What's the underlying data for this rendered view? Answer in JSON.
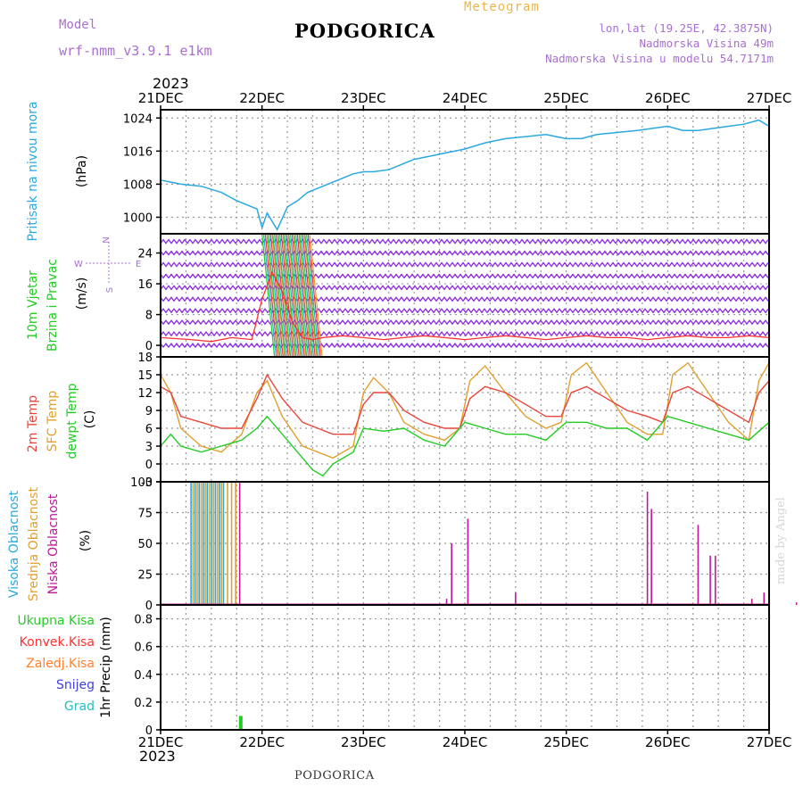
{
  "header": {
    "model_label": "Model",
    "model_name": "wrf-nmm_v3.9.1 e1km",
    "city": "PODGORICA",
    "title": "Meteogram",
    "location": "lon,lat (19.25E, 42.3875N)",
    "elevation": "Nadmorska Visina 49m",
    "model_elevation": "Nadmorska Visina u modelu 54.7171m",
    "year_top": "2023",
    "year_bottom": "2023"
  },
  "footer": {
    "city": "PODGORICA",
    "credit": "made by Angel"
  },
  "colors": {
    "pressure": "#2aa8e0",
    "wind": "#8a2be2",
    "wind_speed": "#ff3030",
    "temp2m": "#e8463c",
    "sfc": "#e0a030",
    "dewpt": "#22cc22",
    "cloud_high": "#2aa8e0",
    "cloud_mid": "#e0a030",
    "cloud_low": "#c0189a",
    "grid": "#999999"
  },
  "x_axis": {
    "ticks": [
      "21DEC",
      "22DEC",
      "23DEC",
      "24DEC",
      "25DEC",
      "26DEC",
      "27DEC"
    ]
  },
  "wind_legend": {
    "n": "N",
    "s": "S",
    "w": "W",
    "e": "E"
  },
  "chart_data": [
    {
      "type": "line",
      "id": "pressure",
      "ylabels": [
        "Pritisak na nivou mora",
        "(hPa)"
      ],
      "yticks": [
        "1000",
        "1008",
        "1016",
        "1024"
      ],
      "ylim": [
        996,
        1026
      ],
      "x_unit": "days from 21DEC 00UTC",
      "series": [
        {
          "x": [
            0,
            0.1,
            0.2,
            0.4,
            0.6,
            0.75,
            0.85,
            0.95,
            1.0,
            1.05,
            1.15,
            1.25,
            1.35,
            1.45,
            1.5,
            1.6,
            1.75,
            1.9,
            2.0,
            2.1,
            2.25,
            2.4,
            2.5,
            2.7,
            2.9,
            3.0,
            3.2,
            3.4,
            3.6,
            3.8,
            3.9,
            4.0,
            4.15,
            4.3,
            4.5,
            4.7,
            4.85,
            5.0,
            5.15,
            5.3,
            5.45,
            5.6,
            5.75,
            5.9,
            6.0
          ],
          "y": [
            1009,
            1008.5,
            1008,
            1007.5,
            1006,
            1004,
            1003,
            1002,
            997.5,
            1001,
            997,
            1002.5,
            1004,
            1006,
            1006.5,
            1007.5,
            1009,
            1010.5,
            1011,
            1011,
            1011.5,
            1013,
            1014,
            1015,
            1016,
            1016.5,
            1018,
            1019,
            1019.5,
            1020,
            1019.5,
            1019,
            1019,
            1020,
            1020.5,
            1021,
            1021.5,
            1022,
            1021,
            1021,
            1021.5,
            1022,
            1022.5,
            1023.5,
            1022
          ]
        }
      ]
    },
    {
      "type": "line",
      "id": "wind",
      "ylabels": [
        "10m Vjetar",
        "Brzina i Pravac",
        "(m/s)"
      ],
      "yticks": [
        "0",
        "8",
        "16",
        "24"
      ],
      "ylim": [
        -3,
        29
      ],
      "series": [
        {
          "name": "Brzina",
          "x": [
            0,
            0.3,
            0.5,
            0.7,
            0.9,
            1.0,
            1.1,
            1.2,
            1.3,
            1.4,
            1.5,
            1.6,
            1.8,
            2.0,
            2.2,
            2.4,
            2.6,
            2.8,
            3.0,
            3.2,
            3.4,
            3.6,
            3.8,
            4.0,
            4.2,
            4.4,
            4.6,
            4.8,
            5.0,
            5.2,
            5.4,
            5.6,
            5.8,
            6.0
          ],
          "y": [
            2,
            1.5,
            1,
            2,
            1.5,
            12,
            19,
            14,
            6,
            2,
            1.5,
            2,
            2.5,
            2,
            1.5,
            2,
            2.5,
            2,
            1.5,
            2,
            2.5,
            2,
            1.5,
            2,
            2.5,
            2,
            2,
            1.5,
            2,
            2.5,
            2,
            2,
            2.5,
            2
          ]
        }
      ]
    },
    {
      "type": "line",
      "id": "temperature",
      "ylabels": [
        "2m Temp",
        "SFC Temp",
        "dewpt Temp",
        "(C)"
      ],
      "yticks": [
        "-3",
        "0",
        "3",
        "6",
        "9",
        "12",
        "15",
        "18"
      ],
      "ylim": [
        -3,
        18
      ],
      "series": [
        {
          "name": "2m Temp",
          "key": "temp2m",
          "x": [
            0,
            0.1,
            0.2,
            0.4,
            0.6,
            0.8,
            0.95,
            1.05,
            1.2,
            1.4,
            1.55,
            1.7,
            1.9,
            2.0,
            2.1,
            2.25,
            2.4,
            2.6,
            2.8,
            2.95,
            3.05,
            3.2,
            3.4,
            3.6,
            3.8,
            3.95,
            4.05,
            4.2,
            4.4,
            4.6,
            4.8,
            4.95,
            5.05,
            5.2,
            5.4,
            5.6,
            5.8,
            5.9,
            6.0
          ],
          "y": [
            13,
            12,
            8,
            7,
            6,
            6,
            11,
            15,
            11,
            7,
            6,
            5,
            5,
            10,
            12,
            12,
            9,
            7,
            6,
            6,
            11,
            13,
            12,
            10,
            8,
            8,
            12,
            13,
            11,
            9,
            8,
            7,
            12,
            13,
            11,
            9,
            7,
            12,
            14
          ]
        },
        {
          "name": "SFC Temp",
          "key": "sfc",
          "x": [
            0,
            0.1,
            0.2,
            0.4,
            0.6,
            0.8,
            0.95,
            1.05,
            1.2,
            1.4,
            1.55,
            1.7,
            1.9,
            2.0,
            2.1,
            2.25,
            2.4,
            2.6,
            2.8,
            2.95,
            3.05,
            3.2,
            3.4,
            3.6,
            3.8,
            3.95,
            4.05,
            4.2,
            4.4,
            4.6,
            4.8,
            4.95,
            5.05,
            5.2,
            5.4,
            5.6,
            5.8,
            5.9,
            6.0
          ],
          "y": [
            15,
            12,
            6,
            3,
            2,
            5,
            12,
            14,
            8,
            3,
            2,
            1,
            3,
            12,
            14.5,
            12,
            7,
            5,
            4,
            6,
            14,
            16.5,
            12,
            8,
            6,
            7,
            15,
            17,
            12,
            7,
            5,
            5,
            15,
            17,
            12,
            7,
            4,
            14,
            17
          ]
        },
        {
          "name": "dewpt Temp",
          "key": "dewpt",
          "x": [
            0,
            0.1,
            0.2,
            0.4,
            0.6,
            0.8,
            0.95,
            1.05,
            1.2,
            1.4,
            1.5,
            1.6,
            1.7,
            1.9,
            2.0,
            2.2,
            2.4,
            2.6,
            2.8,
            3.0,
            3.2,
            3.4,
            3.6,
            3.8,
            4.0,
            4.2,
            4.4,
            4.6,
            4.8,
            5.0,
            5.2,
            5.4,
            5.6,
            5.8,
            6.0
          ],
          "y": [
            3,
            5,
            3,
            2,
            3,
            4,
            6,
            8,
            5,
            1,
            -1,
            -2,
            0,
            2,
            6,
            5.5,
            6,
            4,
            3,
            7,
            6,
            5,
            5,
            4,
            7,
            7,
            6,
            6,
            4,
            8,
            7,
            6,
            5,
            4,
            7
          ]
        }
      ]
    },
    {
      "type": "bar",
      "id": "clouds",
      "ylabels": [
        "Visoka Oblacnost",
        "Srednja Oblacnost",
        "Niska Oblacnost",
        "(%)"
      ],
      "yticks": [
        "0",
        "25",
        "50",
        "75",
        "100"
      ],
      "ylim": [
        0,
        100
      ],
      "series": [
        {
          "name": "Visoka Oblacnost",
          "key": "cloud_high",
          "x": [
            0.3,
            0.34,
            0.38,
            0.42,
            0.46,
            0.5,
            0.54,
            0.58,
            0.62
          ],
          "y": [
            100,
            100,
            100,
            100,
            100,
            100,
            100,
            100,
            100
          ]
        },
        {
          "name": "Srednja Oblacnost",
          "key": "cloud_mid",
          "x": [
            0.32,
            0.36,
            0.4,
            0.44,
            0.48,
            0.52,
            0.56,
            0.6,
            0.66,
            0.7,
            0.74
          ],
          "y": [
            100,
            100,
            100,
            100,
            100,
            100,
            100,
            100,
            100,
            100,
            100
          ]
        },
        {
          "name": "Niska Oblacnost",
          "key": "cloud_low",
          "x": [
            0.78,
            2.82,
            2.87,
            3.03,
            3.5,
            4.8,
            4.84,
            5.3,
            5.42,
            5.47,
            5.83,
            5.95,
            6.27
          ],
          "y": [
            100,
            5,
            50,
            70,
            10,
            92,
            78,
            65,
            40,
            40,
            5,
            10,
            2
          ]
        }
      ]
    },
    {
      "type": "bar",
      "id": "precip",
      "ylabels": [
        "1hr Precip (mm)"
      ],
      "legend": [
        "Ukupna Kisa",
        "Konvek.Kisa",
        "Zaledj.Kisa",
        "Snijeg",
        "Grad"
      ],
      "yticks": [
        "0",
        "0.2",
        "0.4",
        "0.6",
        "0.8"
      ],
      "ylim": [
        0,
        0.9
      ],
      "series": [
        {
          "name": "Ukupna Kisa",
          "key": "dewpt",
          "x": [
            0.79
          ],
          "y": [
            0.1
          ]
        }
      ]
    }
  ]
}
